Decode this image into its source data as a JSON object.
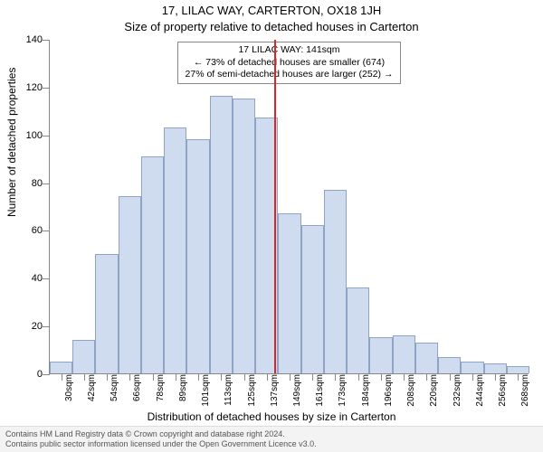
{
  "titles": {
    "main": "17, LILAC WAY, CARTERTON, OX18 1JH",
    "sub": "Size of property relative to detached houses in Carterton",
    "ylabel": "Number of detached properties",
    "xlabel": "Distribution of detached houses by size in Carterton"
  },
  "footer": {
    "line1": "Contains HM Land Registry data © Crown copyright and database right 2024.",
    "line2": "Contains public sector information licensed under the Open Government Licence v3.0."
  },
  "info_box": {
    "line1": "17 LILAC WAY: 141sqm",
    "line2": "← 73% of detached houses are smaller (674)",
    "line3": "27% of semi-detached houses are larger (252) →"
  },
  "chart": {
    "type": "histogram",
    "ylim": [
      0,
      140
    ],
    "ytick_step": 20,
    "xticks": [
      30,
      42,
      54,
      66,
      78,
      89,
      101,
      113,
      125,
      137,
      149,
      161,
      173,
      184,
      196,
      208,
      220,
      232,
      244,
      256,
      268
    ],
    "xtick_suffix": "sqm",
    "bar_values": [
      5,
      14,
      50,
      74,
      91,
      103,
      98,
      116,
      115,
      107,
      67,
      62,
      77,
      36,
      15,
      16,
      13,
      7,
      5,
      4,
      3
    ],
    "bar_color": "#cfdcf0",
    "bar_border_color": "#8fa3c4",
    "bar_width_ratio": 1.0,
    "reference_value": 141,
    "reference_line_color": "#d62728",
    "background_color": "#ffffff",
    "axis_color": "#888888",
    "title_fontsize": 13,
    "label_fontsize": 12,
    "tick_fontsize": 11,
    "info_box_border": "#888888",
    "info_box_bg": "#ffffff"
  }
}
